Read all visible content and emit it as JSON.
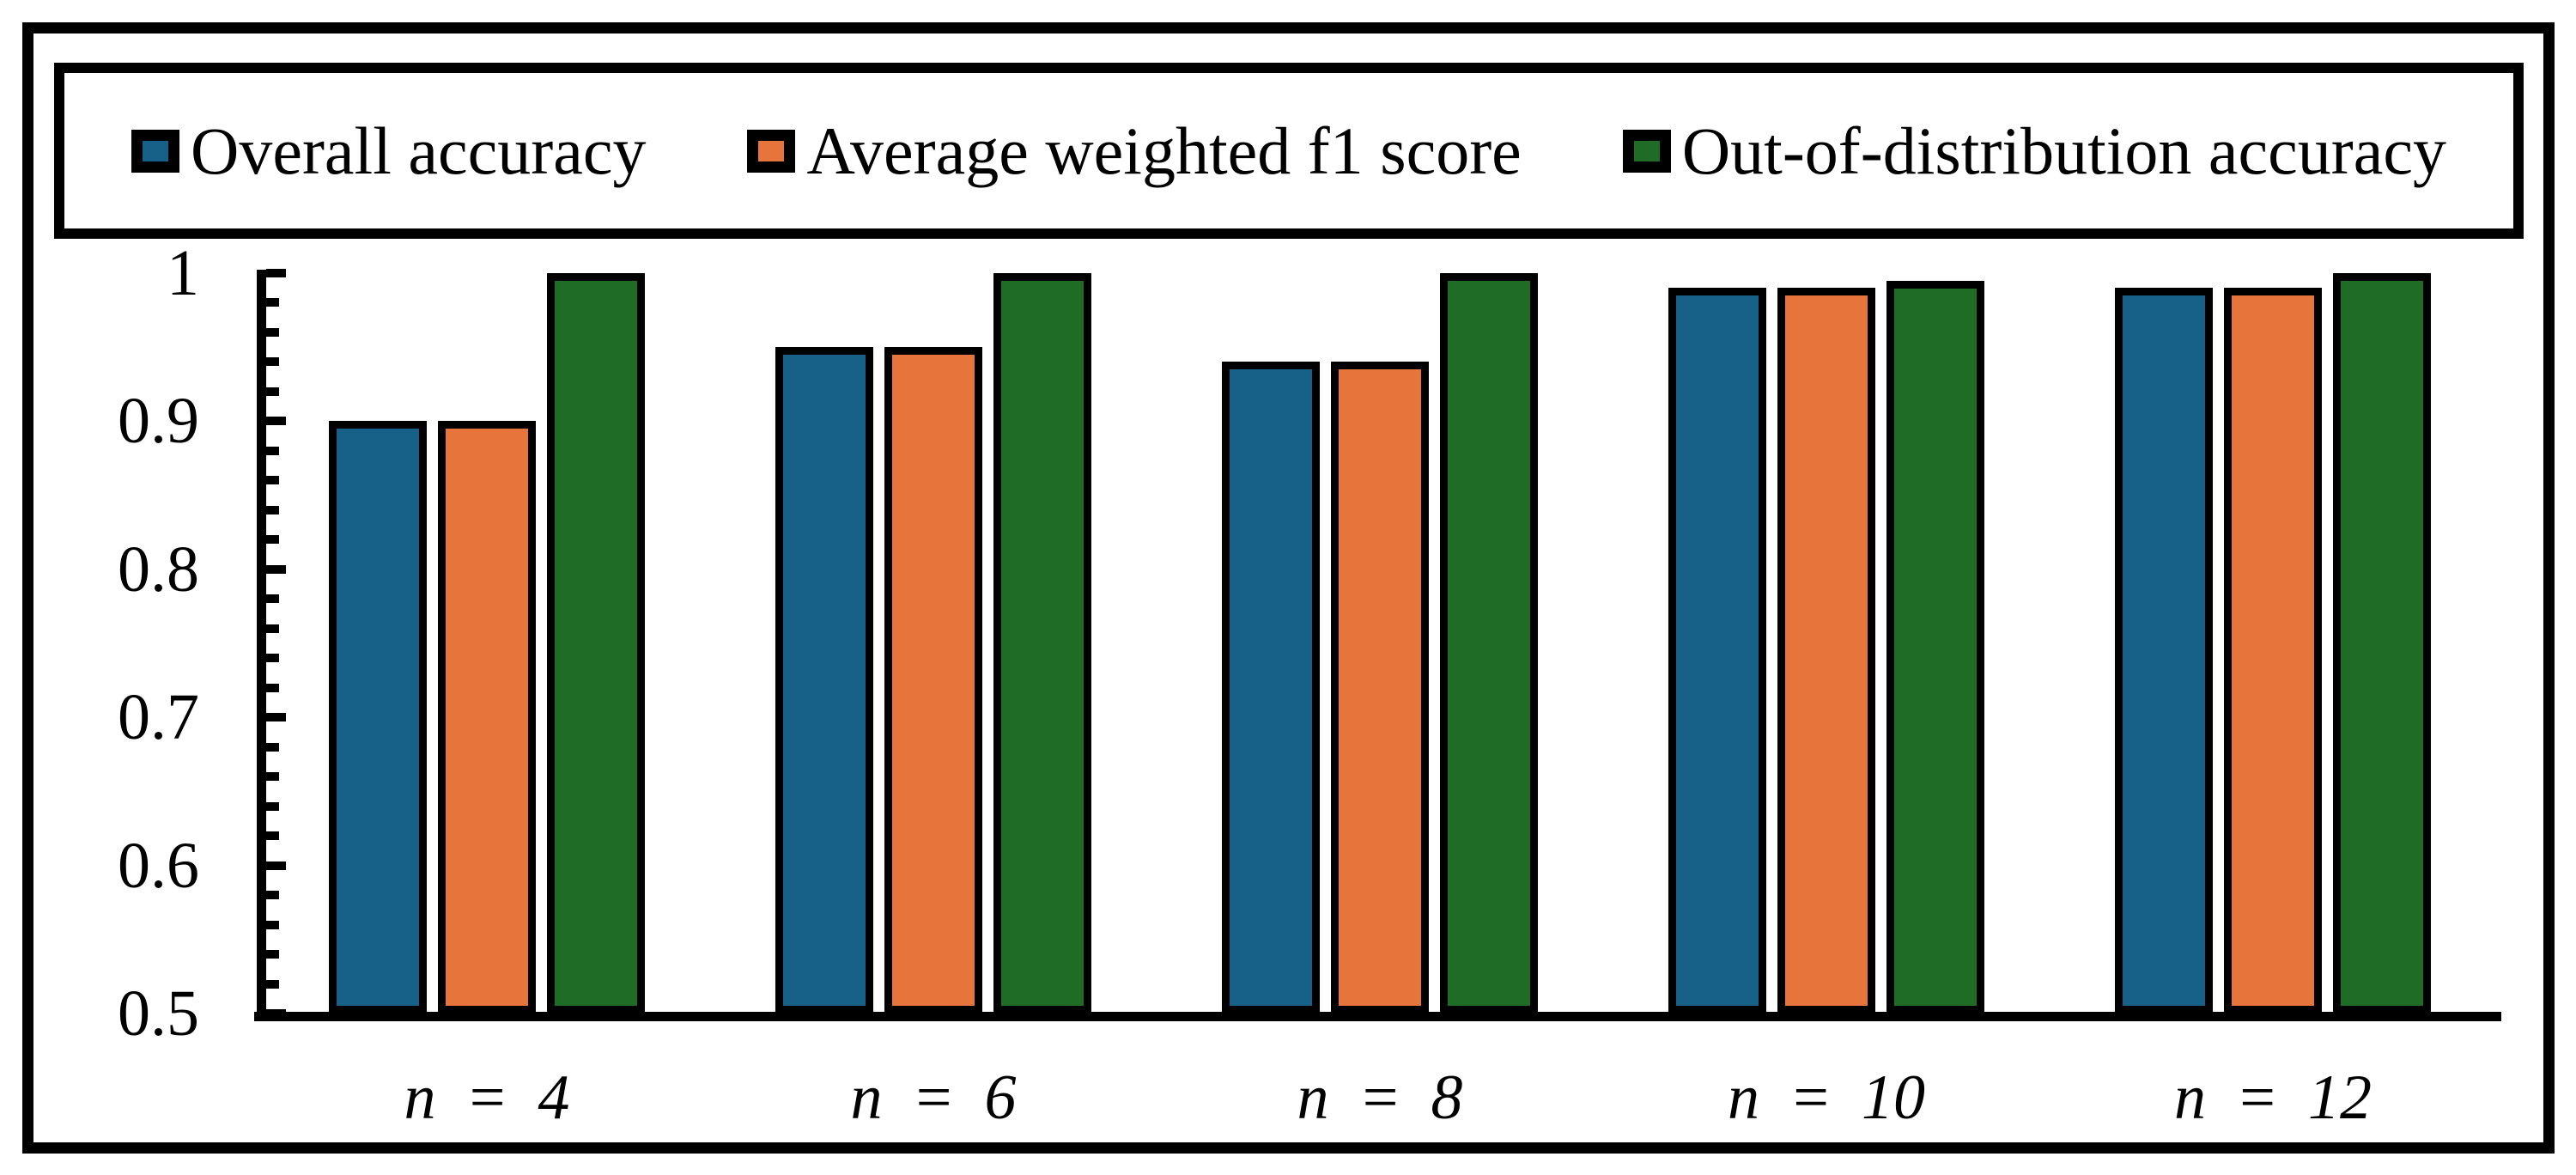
{
  "figure": {
    "background": "#ffffff",
    "border_color": "#000000"
  },
  "legend": {
    "items": [
      {
        "label": "Overall accuracy",
        "color": "#176087",
        "swatch": "blue-square"
      },
      {
        "label": "Average weighted f1 score",
        "color": "#E7743A",
        "swatch": "orange-square"
      },
      {
        "label": "Out-of-distribution accuracy",
        "color": "#1E6C26",
        "swatch": "green-square"
      }
    ]
  },
  "chart_data": {
    "type": "bar",
    "title": "",
    "xlabel": "",
    "ylabel": "",
    "categories": [
      "n = 4",
      "n = 6",
      "n = 8",
      "n = 10",
      "n = 12"
    ],
    "series": [
      {
        "name": "Overall accuracy",
        "color": "#176087",
        "values": [
          0.9,
          0.95,
          0.94,
          0.99,
          0.99
        ]
      },
      {
        "name": "Average weighted f1 score",
        "color": "#E7743A",
        "values": [
          0.9,
          0.95,
          0.94,
          0.99,
          0.99
        ]
      },
      {
        "name": "Out-of-distribution accuracy",
        "color": "#1E6C26",
        "values": [
          1.0,
          1.0,
          1.0,
          0.995,
          1.0
        ]
      }
    ],
    "yaxis": {
      "min": 0.5,
      "max": 1.0,
      "major_step": 0.1,
      "minor_step": 0.02,
      "tick_labels": [
        "0.5",
        "0.6",
        "0.7",
        "0.8",
        "0.9",
        "1"
      ],
      "ticks_inside": true
    },
    "bar_outline_color": "#000000",
    "legend_position": "top",
    "grid": false
  }
}
